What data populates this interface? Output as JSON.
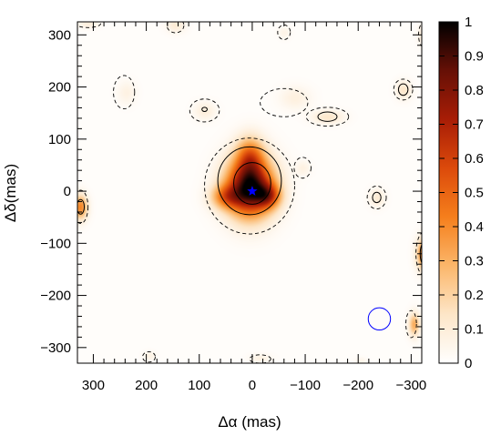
{
  "chart_data": {
    "type": "heatmap",
    "title": "",
    "xlabel": "Δα (mas)",
    "ylabel": "Δδ(mas)",
    "xlim": [
      330,
      -320
    ],
    "ylim": [
      -330,
      325
    ],
    "x_ticks": [
      300,
      200,
      100,
      0,
      -100,
      -200,
      -300
    ],
    "x_tick_labels": [
      "300",
      "200",
      "100",
      "0",
      "−100",
      "−200",
      "−300"
    ],
    "y_ticks": [
      300,
      200,
      100,
      0,
      -100,
      -200,
      -300
    ],
    "y_tick_labels": [
      "300",
      "200",
      "100",
      "0",
      "−100",
      "−200",
      "−300"
    ],
    "colorbar": {
      "range": [
        0,
        1
      ],
      "ticks": [
        0,
        0.1,
        0.2,
        0.3,
        0.4,
        0.5,
        0.6,
        0.7,
        0.8,
        0.9,
        1
      ],
      "tick_labels": [
        "0",
        "0.1",
        "0.2",
        "0.3",
        "0.4",
        "0.5",
        "0.6",
        "0.7",
        "0.8",
        "0.9",
        "1"
      ],
      "colormap": [
        "#ffffff",
        "#fde6c8",
        "#fbb66a",
        "#f57f1c",
        "#dc4a0b",
        "#a81d06",
        "#661006",
        "#000000"
      ]
    },
    "star_marker": {
      "x": 0,
      "y": 0,
      "color": "#0000ff"
    },
    "beam_circle": {
      "x": -240,
      "y": -245,
      "radius_mas": 21,
      "color": "#0000ff"
    },
    "sources": [
      {
        "x": 5,
        "y": 8,
        "peak": 1.0,
        "sigma_x": 30,
        "sigma_y": 38
      },
      {
        "x": 50,
        "y": -10,
        "peak": 0.35,
        "sigma_x": 20,
        "sigma_y": 16
      },
      {
        "x": -30,
        "y": -8,
        "peak": 0.4,
        "sigma_x": 16,
        "sigma_y": 16
      },
      {
        "x": 5,
        "y": 70,
        "peak": 0.35,
        "sigma_x": 18,
        "sigma_y": 25
      },
      {
        "x": -325,
        "y": -120,
        "peak": 0.5,
        "sigma_x": 10,
        "sigma_y": 20
      },
      {
        "x": 325,
        "y": -30,
        "peak": 0.4,
        "sigma_x": 9,
        "sigma_y": 16
      },
      {
        "x": -305,
        "y": -255,
        "peak": 0.3,
        "sigma_x": 7,
        "sigma_y": 15
      },
      {
        "x": -142,
        "y": 143,
        "peak": 0.12,
        "sigma_x": 20,
        "sigma_y": 9
      },
      {
        "x": -285,
        "y": 195,
        "peak": 0.12,
        "sigma_x": 10,
        "sigma_y": 12
      },
      {
        "x": -80,
        "y": 180,
        "peak": 0.07,
        "sigma_x": 20,
        "sigma_y": 15
      },
      {
        "x": 90,
        "y": 155,
        "peak": 0.08,
        "sigma_x": 14,
        "sigma_y": 12
      },
      {
        "x": 238,
        "y": 190,
        "peak": 0.06,
        "sigma_x": 12,
        "sigma_y": 15
      },
      {
        "x": -235,
        "y": -12,
        "peak": 0.1,
        "sigma_x": 10,
        "sigma_y": 12
      },
      {
        "x": -95,
        "y": 45,
        "peak": 0.06,
        "sigma_x": 10,
        "sigma_y": 10
      },
      {
        "x": 145,
        "y": 320,
        "peak": 0.1,
        "sigma_x": 12,
        "sigma_y": 10
      },
      {
        "x": 310,
        "y": 322,
        "peak": 0.08,
        "sigma_x": 14,
        "sigma_y": 6
      },
      {
        "x": -60,
        "y": 305,
        "peak": 0.05,
        "sigma_x": 8,
        "sigma_y": 8
      },
      {
        "x": -320,
        "y": 300,
        "peak": 0.08,
        "sigma_x": 6,
        "sigma_y": 14
      },
      {
        "x": 195,
        "y": -315,
        "peak": 0.06,
        "sigma_x": 8,
        "sigma_y": 6
      },
      {
        "x": -15,
        "y": -320,
        "peak": 0.06,
        "sigma_x": 14,
        "sigma_y": 6
      },
      {
        "x": -205,
        "y": -325,
        "peak": 0.04,
        "sigma_x": 8,
        "sigma_y": 5
      }
    ],
    "dashed_contours": [
      {
        "cx": 5,
        "cy": 10,
        "rx": 85,
        "ry": 92
      },
      {
        "cx": 324,
        "cy": -30,
        "rx": 14,
        "ry": 32
      },
      {
        "cx": -325,
        "cy": -120,
        "rx": 16,
        "ry": 42
      },
      {
        "cx": 242,
        "cy": 190,
        "rx": 20,
        "ry": 32
      },
      {
        "cx": 90,
        "cy": 155,
        "rx": 28,
        "ry": 22
      },
      {
        "cx": -60,
        "cy": 170,
        "rx": 45,
        "ry": 27
      },
      {
        "cx": -142,
        "cy": 143,
        "rx": 40,
        "ry": 18
      },
      {
        "cx": -285,
        "cy": 195,
        "rx": 18,
        "ry": 20
      },
      {
        "cx": -95,
        "cy": 45,
        "rx": 16,
        "ry": 20
      },
      {
        "cx": -235,
        "cy": -12,
        "rx": 18,
        "ry": 22
      },
      {
        "cx": 145,
        "cy": 318,
        "rx": 16,
        "ry": 14
      },
      {
        "cx": 310,
        "cy": 322,
        "rx": 24,
        "ry": 8
      },
      {
        "cx": -60,
        "cy": 305,
        "rx": 12,
        "ry": 14
      },
      {
        "cx": -322,
        "cy": 300,
        "rx": 8,
        "ry": 22
      },
      {
        "cx": 195,
        "cy": -318,
        "rx": 12,
        "ry": 10
      },
      {
        "cx": -15,
        "cy": -322,
        "rx": 20,
        "ry": 8
      },
      {
        "cx": -300,
        "cy": -255,
        "rx": 10,
        "ry": 26
      }
    ],
    "solid_contours": [
      {
        "cx": 5,
        "cy": 20,
        "rx": 60,
        "ry": 65
      },
      {
        "cx": 0,
        "cy": 15,
        "rx": 35,
        "ry": 40
      },
      {
        "cx": -325,
        "cy": -120,
        "rx": 8,
        "ry": 22
      },
      {
        "cx": -235,
        "cy": -12,
        "rx": 8,
        "ry": 10
      },
      {
        "cx": -142,
        "cy": 143,
        "rx": 18,
        "ry": 9
      },
      {
        "cx": -285,
        "cy": 195,
        "rx": 9,
        "ry": 11
      },
      {
        "cx": 324,
        "cy": -30,
        "rx": 7,
        "ry": 14
      },
      {
        "cx": 90,
        "cy": 157,
        "rx": 5,
        "ry": 4
      }
    ]
  }
}
